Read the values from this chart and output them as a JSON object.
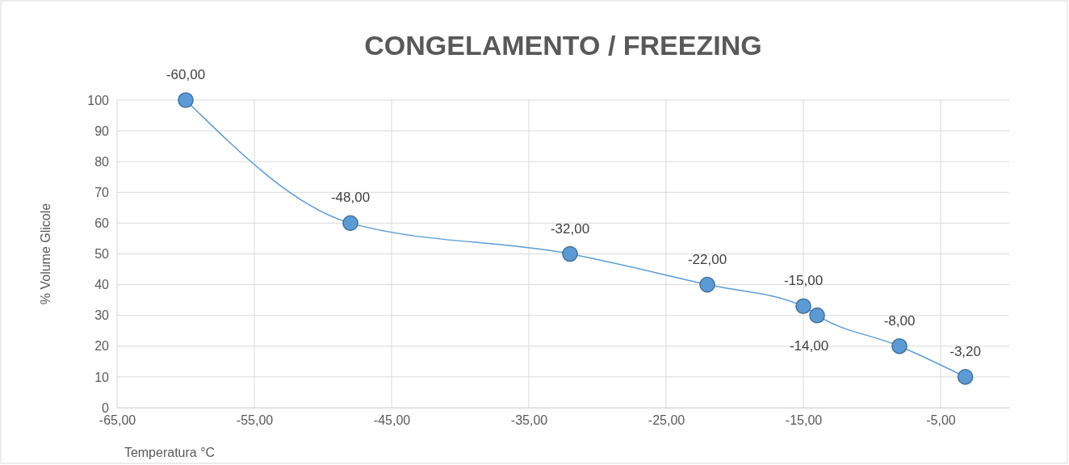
{
  "chart_data": {
    "type": "line",
    "title": "CONGELAMENTO / FREEZING",
    "xlabel": "Temperatura °C",
    "ylabel": "% Volume Glicole",
    "x": [
      -60,
      -48,
      -32,
      -22,
      -15,
      -14,
      -8,
      -3.2
    ],
    "series": [
      {
        "color": "#5b9bd5",
        "values": [
          100,
          60,
          50,
          40,
          33,
          30,
          20,
          10
        ]
      }
    ],
    "annotations": [
      {
        "text": "-60,00",
        "x": -60,
        "y": 100
      },
      {
        "text": "-48,00",
        "x": -48,
        "y": 60
      },
      {
        "text": "-32,00",
        "x": -32,
        "y": 50
      },
      {
        "text": "-22,00",
        "x": -22,
        "y": 40
      },
      {
        "text": "-15,00",
        "x": -15,
        "y": 33
      },
      {
        "text": "-14,00",
        "x": -14,
        "y": 30
      },
      {
        "text": "-8,00",
        "x": -8,
        "y": 20
      },
      {
        "text": "-3,20",
        "x": -3.2,
        "y": 10
      }
    ],
    "xlim": [
      -65,
      0
    ],
    "xticks": [
      {
        "value": -65,
        "label": "-65,00"
      },
      {
        "value": -55,
        "label": "-55,00"
      },
      {
        "value": -45,
        "label": "-45,00"
      },
      {
        "value": -35,
        "label": "-35,00"
      },
      {
        "value": -25,
        "label": "-25,00"
      },
      {
        "value": -15,
        "label": "-15,00"
      },
      {
        "value": -5,
        "label": "-5,00"
      }
    ],
    "ylim": [
      0,
      100
    ],
    "yticks": [
      0,
      10,
      20,
      30,
      40,
      50,
      60,
      70,
      80,
      90,
      100
    ],
    "grid": true,
    "marker": "circle",
    "line_style": "solid"
  }
}
